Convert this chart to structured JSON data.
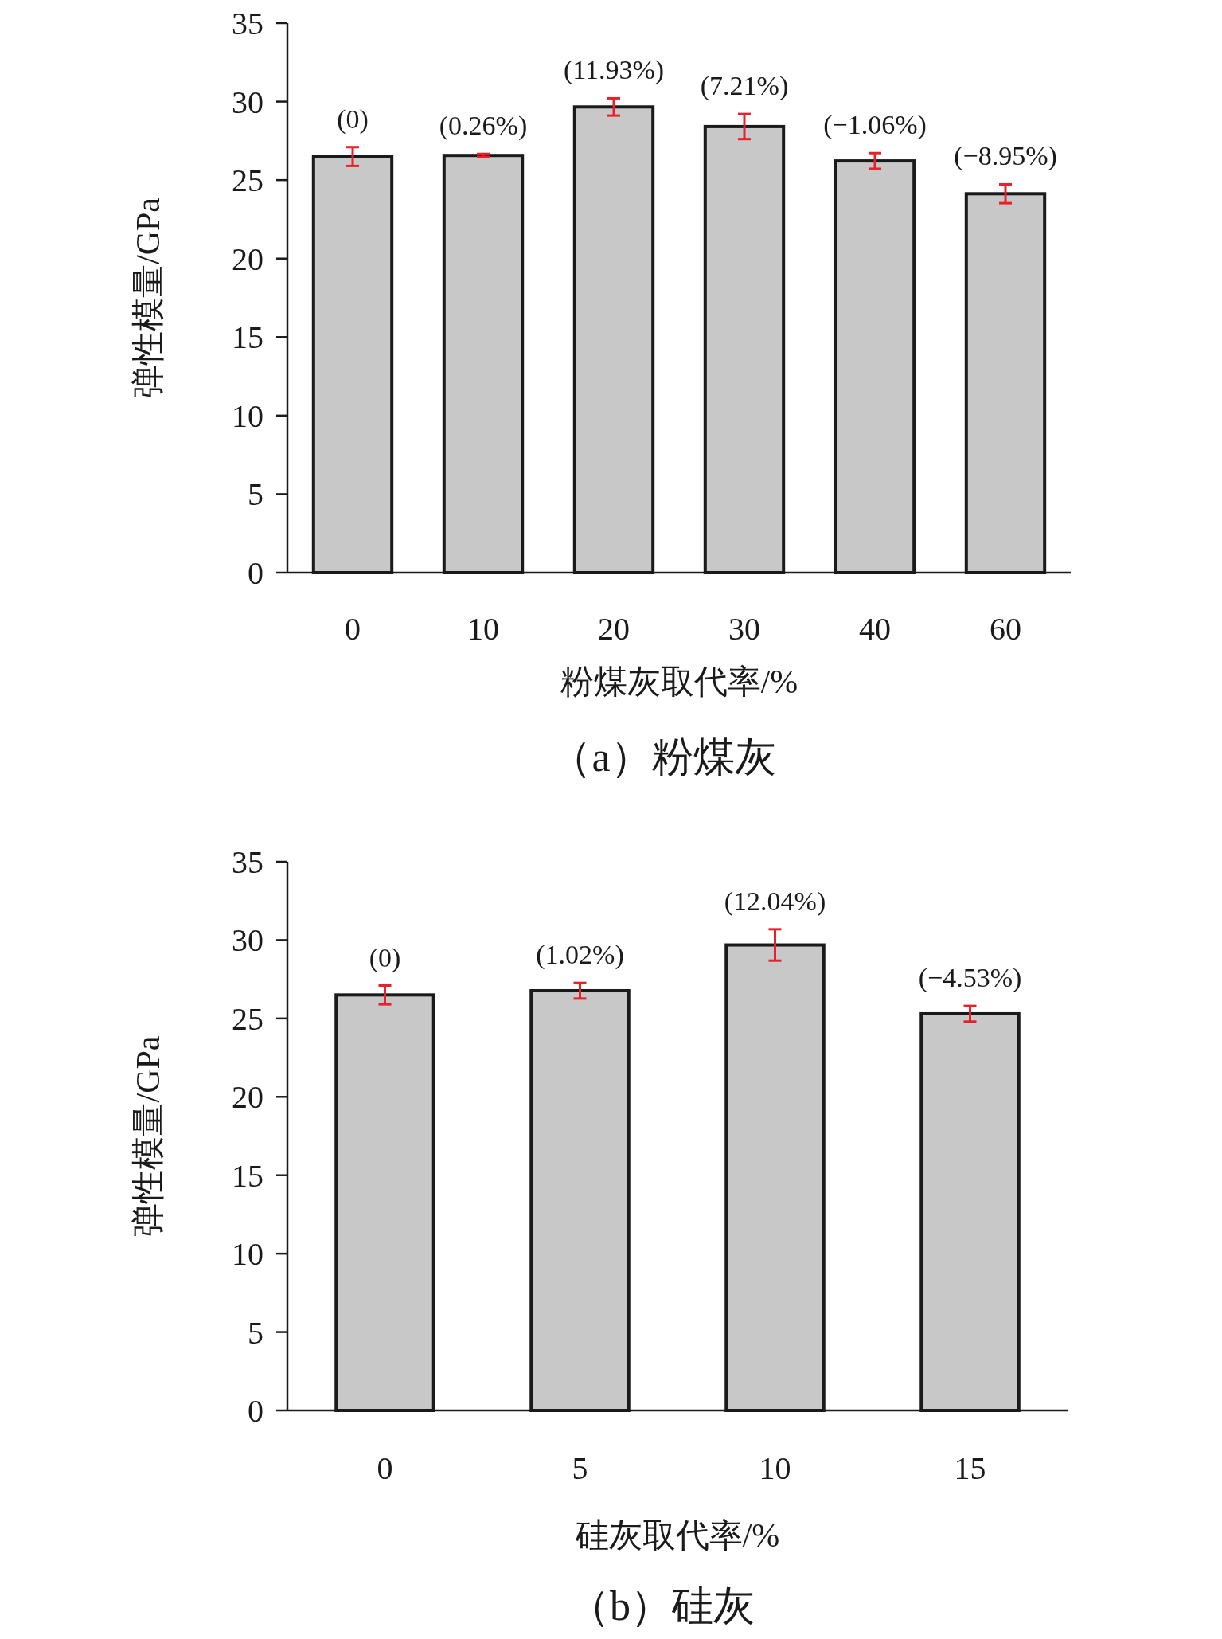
{
  "chart_data": [
    {
      "type": "bar",
      "categories": [
        "0",
        "10",
        "20",
        "30",
        "40",
        "60"
      ],
      "values": [
        26.5,
        26.57,
        29.66,
        28.41,
        26.22,
        24.13
      ],
      "errors": [
        0.6,
        0.1,
        0.55,
        0.8,
        0.5,
        0.6
      ],
      "color": "#c8c8c8",
      "xlabel": "粉煤灰取代率/%",
      "ylabel": "弹性模量/GPa",
      "ylim": [
        0,
        35
      ],
      "yticks": [
        0,
        5,
        10,
        15,
        20,
        25,
        30,
        35
      ],
      "annotations": [
        {
          "text": "(0)",
          "x": "0",
          "y": 26.5
        },
        {
          "text": "(0.26%)",
          "x": "10",
          "y": 26.57
        },
        {
          "text": "(11.93%)",
          "x": "20",
          "y": 29.66
        },
        {
          "text": "(7.21%)",
          "x": "30",
          "y": 28.41
        },
        {
          "text": "(−1.06%)",
          "x": "40",
          "y": 26.22
        },
        {
          "text": "(−8.95%)",
          "x": "60",
          "y": 24.13
        },
        "（a）粉煤灰"
      ]
    },
    {
      "type": "bar",
      "categories": [
        "0",
        "5",
        "10",
        "15"
      ],
      "values": [
        26.5,
        26.77,
        29.69,
        25.3
      ],
      "errors": [
        0.6,
        0.5,
        1.0,
        0.5
      ],
      "color": "#c8c8c8",
      "xlabel": "硅灰取代率/%",
      "ylabel": "弹性模量/GPa",
      "ylim": [
        0,
        35
      ],
      "yticks": [
        0,
        5,
        10,
        15,
        20,
        25,
        30,
        35
      ],
      "annotations": [
        {
          "text": "(0)",
          "x": "0",
          "y": 26.5
        },
        {
          "text": "(1.02%)",
          "x": "5",
          "y": 26.77
        },
        {
          "text": "(12.04%)",
          "x": "10",
          "y": 29.69
        },
        {
          "text": "(−4.53%)",
          "x": "15",
          "y": 25.3
        },
        "（b）硅灰"
      ]
    }
  ]
}
